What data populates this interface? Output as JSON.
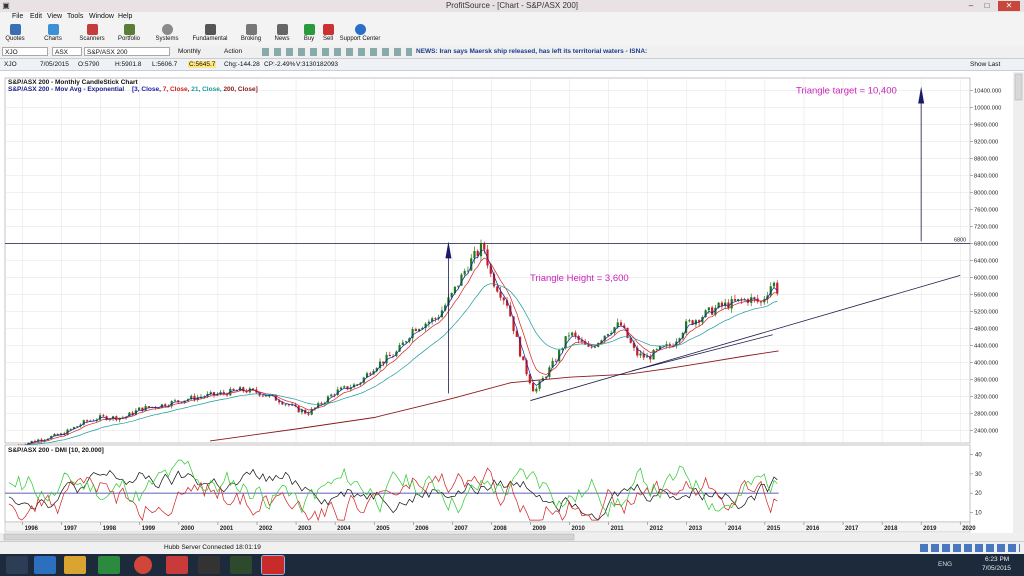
{
  "window": {
    "title": "ProfitSource - [Chart - S&P/ASX 200]"
  },
  "menu": [
    "File",
    "Edit",
    "View",
    "Tools",
    "Window",
    "Help"
  ],
  "toolbar": [
    "Quotes",
    "Charts",
    "Scanners",
    "Portfolio",
    "Systems",
    "Fundamental",
    "Broking",
    "News",
    "Buy",
    "Sell",
    "Support Center"
  ],
  "symbolbar": {
    "code": "XJO",
    "exchange": "ASX",
    "name": "S&P/ASX 200",
    "period": "Monthly",
    "action": "Action",
    "news": "NEWS: Iran says Maersk ship released, has left its territorial waters - ISNA:"
  },
  "quote": {
    "symbol": "XJO",
    "date": "7/05/2015",
    "open": "O:5790",
    "high": "H:5901.8",
    "low": "L:5606.7",
    "close": "C:5645.7",
    "chg": "Chg:-144.28",
    "cp": "CP:-2.49%",
    "vol": "V:3130182093",
    "show_last": "Show Last"
  },
  "chart_data": [
    {
      "type": "candlestick",
      "title": "S&P/ASX 200 - Monthly CandleStick Chart",
      "subtitle": "S&P/ASX 200 - Mov Avg - Exponential",
      "ma_params": [
        "[3, Close,",
        "7, Close,",
        "21, Close,",
        "200, Close]"
      ],
      "ylim": [
        2100,
        10700
      ],
      "y_ticks": [
        2400,
        2800,
        3200,
        3600,
        4000,
        4400,
        4800,
        5200,
        5600,
        6000,
        6400,
        6800,
        7200,
        7600,
        8000,
        8400,
        8800,
        9200,
        9600,
        10000,
        10400
      ],
      "y_tick_labels": [
        "2400.000",
        "2800.000",
        "3200.000",
        "3600.000",
        "4000.000",
        "4400.000",
        "4800.000",
        "5200.000",
        "5600.000",
        "6000.000",
        "6400.000",
        "6800.000",
        "7200.000",
        "7600.000",
        "8000.000",
        "8400.000",
        "8800.000",
        "9200.000",
        "9600.000",
        "10000.000",
        "10400.000"
      ],
      "series_close_approx": [
        [
          1995.9,
          2050
        ],
        [
          1996.5,
          2200
        ],
        [
          1997.0,
          2300
        ],
        [
          1997.6,
          2600
        ],
        [
          1998.0,
          2700
        ],
        [
          1998.6,
          2700
        ],
        [
          1999.0,
          2900
        ],
        [
          1999.6,
          3000
        ],
        [
          2000.0,
          3100
        ],
        [
          2000.6,
          3200
        ],
        [
          2001.0,
          3250
        ],
        [
          2001.6,
          3350
        ],
        [
          2002.0,
          3300
        ],
        [
          2002.6,
          3100
        ],
        [
          2003.0,
          2900
        ],
        [
          2003.3,
          2800
        ],
        [
          2003.6,
          3000
        ],
        [
          2004.0,
          3300
        ],
        [
          2004.6,
          3500
        ],
        [
          2005.0,
          3900
        ],
        [
          2005.6,
          4250
        ],
        [
          2006.0,
          4800
        ],
        [
          2006.6,
          5050
        ],
        [
          2007.0,
          5600
        ],
        [
          2007.4,
          6300
        ],
        [
          2007.8,
          6750
        ],
        [
          2008.0,
          6000
        ],
        [
          2008.4,
          5400
        ],
        [
          2008.8,
          4000
        ],
        [
          2009.1,
          3300
        ],
        [
          2009.6,
          4000
        ],
        [
          2010.0,
          4700
        ],
        [
          2010.5,
          4300
        ],
        [
          2011.0,
          4750
        ],
        [
          2011.3,
          4900
        ],
        [
          2011.7,
          4200
        ],
        [
          2012.0,
          4100
        ],
        [
          2012.3,
          4300
        ],
        [
          2012.6,
          4400
        ],
        [
          2013.0,
          4900
        ],
        [
          2013.4,
          5100
        ],
        [
          2013.8,
          5300
        ],
        [
          2014.2,
          5400
        ],
        [
          2014.6,
          5500
        ],
        [
          2014.9,
          5400
        ],
        [
          2015.2,
          5900
        ],
        [
          2015.35,
          5646
        ]
      ],
      "x_labels": [
        "1996",
        "1997",
        "1998",
        "1999",
        "2000",
        "2001",
        "2002",
        "2003",
        "2004",
        "2005",
        "2006",
        "2007",
        "2008",
        "2009",
        "2010",
        "2011",
        "2012",
        "2013",
        "2014",
        "2015",
        "2016",
        "2017",
        "2018",
        "2019",
        "2020"
      ],
      "annotations": {
        "triangle_target": "Triangle target = 10,400",
        "triangle_height": "Triangle Height = 3,600",
        "level_label": "6800"
      },
      "colors": {
        "up": "#1e7a1e",
        "down": "#c41f1f",
        "ma3": "#1a1aaa",
        "ma7": "#d22020",
        "ma21": "#1a9a9a",
        "ma200": "#8a1a1a",
        "annotation": "#cc22bb"
      }
    },
    {
      "type": "line",
      "title": "S&P/ASX 200 - DMI [10, 20.000]",
      "ylim": [
        5,
        45
      ],
      "y_ticks": [
        10,
        20,
        30,
        40
      ],
      "reference_line": 20,
      "series": [
        {
          "name": "",
          "color": "#111111"
        },
        {
          "name": "",
          "color": "#d22020"
        },
        {
          "name": "",
          "color": "#2ec82e"
        }
      ]
    }
  ],
  "statusbar": {
    "server": "Hubb Server Connected 18:01:19"
  },
  "taskbar": {
    "lang": "ENG",
    "time": "6:23 PM",
    "date": "7/05/2015"
  }
}
